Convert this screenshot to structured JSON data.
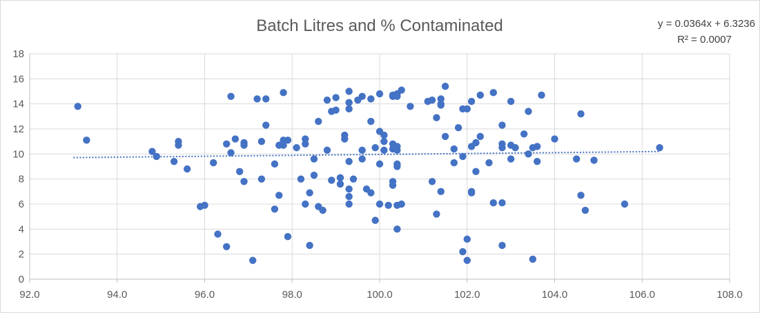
{
  "chart_data": {
    "type": "scatter",
    "title": "Batch Litres and % Contaminated",
    "xlabel": "",
    "ylabel": "",
    "xlim": [
      92.0,
      108.0
    ],
    "ylim": [
      0,
      18
    ],
    "x_ticks": [
      92,
      94,
      96,
      98,
      100,
      102,
      104,
      106,
      108
    ],
    "x_tick_labels": [
      "92.0",
      "94.0",
      "96.0",
      "98.0",
      "100.0",
      "102.0",
      "104.0",
      "106.0",
      "108.0"
    ],
    "y_ticks": [
      0,
      2,
      4,
      6,
      8,
      10,
      12,
      14,
      16,
      18
    ],
    "y_tick_labels": [
      "0",
      "2",
      "4",
      "6",
      "8",
      "10",
      "12",
      "14",
      "16",
      "18"
    ],
    "grid": true,
    "legend": "none",
    "marker_color": "#4472c4",
    "trendline": {
      "type": "linear",
      "slope": 0.0364,
      "intercept": 6.3236,
      "x_range": [
        93.0,
        106.4
      ],
      "style": "dotted",
      "color": "#4472c4",
      "equation_text": "y = 0.0364x + 6.3236",
      "r2_text": "R² = 0.0007"
    },
    "points": [
      [
        93.1,
        13.8
      ],
      [
        93.3,
        11.1
      ],
      [
        94.8,
        10.2
      ],
      [
        94.9,
        9.8
      ],
      [
        95.3,
        9.4
      ],
      [
        95.4,
        11.0
      ],
      [
        95.4,
        10.7
      ],
      [
        95.6,
        8.8
      ],
      [
        95.9,
        5.8
      ],
      [
        96.0,
        5.9
      ],
      [
        96.2,
        9.3
      ],
      [
        96.3,
        3.6
      ],
      [
        96.5,
        10.8
      ],
      [
        96.5,
        2.6
      ],
      [
        96.6,
        14.6
      ],
      [
        96.6,
        10.1
      ],
      [
        96.7,
        11.2
      ],
      [
        96.8,
        8.6
      ],
      [
        96.9,
        10.9
      ],
      [
        96.9,
        10.7
      ],
      [
        96.9,
        7.8
      ],
      [
        97.1,
        1.5
      ],
      [
        97.2,
        14.4
      ],
      [
        97.3,
        11.0
      ],
      [
        97.3,
        8.0
      ],
      [
        97.4,
        14.4
      ],
      [
        97.4,
        12.3
      ],
      [
        97.6,
        9.2
      ],
      [
        97.6,
        5.6
      ],
      [
        97.7,
        10.7
      ],
      [
        97.7,
        6.7
      ],
      [
        97.8,
        10.7
      ],
      [
        97.8,
        11.1
      ],
      [
        97.8,
        14.9
      ],
      [
        97.9,
        11.1
      ],
      [
        97.9,
        3.4
      ],
      [
        98.1,
        10.5
      ],
      [
        98.2,
        8.0
      ],
      [
        98.3,
        11.2
      ],
      [
        98.3,
        10.8
      ],
      [
        98.3,
        6.0
      ],
      [
        98.4,
        2.7
      ],
      [
        98.4,
        6.9
      ],
      [
        98.5,
        9.6
      ],
      [
        98.5,
        8.3
      ],
      [
        98.6,
        12.6
      ],
      [
        98.6,
        5.8
      ],
      [
        98.7,
        5.5
      ],
      [
        98.8,
        10.3
      ],
      [
        98.8,
        14.3
      ],
      [
        98.9,
        13.4
      ],
      [
        98.9,
        7.9
      ],
      [
        99.0,
        13.5
      ],
      [
        99.0,
        14.5
      ],
      [
        99.1,
        7.6
      ],
      [
        99.1,
        8.1
      ],
      [
        99.2,
        11.5
      ],
      [
        99.2,
        11.2
      ],
      [
        99.3,
        15.0
      ],
      [
        99.3,
        14.1
      ],
      [
        99.3,
        7.2
      ],
      [
        99.3,
        6.6
      ],
      [
        99.3,
        9.4
      ],
      [
        99.3,
        13.6
      ],
      [
        99.3,
        6.0
      ],
      [
        99.4,
        8.0
      ],
      [
        99.5,
        14.3
      ],
      [
        99.6,
        14.6
      ],
      [
        99.6,
        9.6
      ],
      [
        99.6,
        10.3
      ],
      [
        99.7,
        7.2
      ],
      [
        99.8,
        14.4
      ],
      [
        99.8,
        12.6
      ],
      [
        99.8,
        6.9
      ],
      [
        99.9,
        10.5
      ],
      [
        99.9,
        4.7
      ],
      [
        100.0,
        11.8
      ],
      [
        100.0,
        9.2
      ],
      [
        100.0,
        14.8
      ],
      [
        100.0,
        6.0
      ],
      [
        100.1,
        11.5
      ],
      [
        100.1,
        11.0
      ],
      [
        100.1,
        10.3
      ],
      [
        100.2,
        5.9
      ],
      [
        100.3,
        14.6
      ],
      [
        100.3,
        10.8
      ],
      [
        100.3,
        10.4
      ],
      [
        100.3,
        7.8
      ],
      [
        100.3,
        7.5
      ],
      [
        100.3,
        14.7
      ],
      [
        100.4,
        14.8
      ],
      [
        100.4,
        10.3
      ],
      [
        100.4,
        10.6
      ],
      [
        100.4,
        9.0
      ],
      [
        100.4,
        5.9
      ],
      [
        100.4,
        4.0
      ],
      [
        100.4,
        9.2
      ],
      [
        100.4,
        14.6
      ],
      [
        100.5,
        15.1
      ],
      [
        100.5,
        6.0
      ],
      [
        100.7,
        13.8
      ],
      [
        101.1,
        14.2
      ],
      [
        101.2,
        14.3
      ],
      [
        101.2,
        7.8
      ],
      [
        101.3,
        5.2
      ],
      [
        101.3,
        12.9
      ],
      [
        101.4,
        14.0
      ],
      [
        101.4,
        13.9
      ],
      [
        101.4,
        7.0
      ],
      [
        101.4,
        14.4
      ],
      [
        101.5,
        15.4
      ],
      [
        101.5,
        11.4
      ],
      [
        101.7,
        10.4
      ],
      [
        101.7,
        9.3
      ],
      [
        101.8,
        12.1
      ],
      [
        101.9,
        9.8
      ],
      [
        101.9,
        2.2
      ],
      [
        101.9,
        13.6
      ],
      [
        102.0,
        13.6
      ],
      [
        102.0,
        3.2
      ],
      [
        102.0,
        1.5
      ],
      [
        102.1,
        14.2
      ],
      [
        102.1,
        10.6
      ],
      [
        102.1,
        6.9
      ],
      [
        102.1,
        7.0
      ],
      [
        102.2,
        10.9
      ],
      [
        102.2,
        8.6
      ],
      [
        102.3,
        14.7
      ],
      [
        102.3,
        11.4
      ],
      [
        102.5,
        9.3
      ],
      [
        102.6,
        14.9
      ],
      [
        102.6,
        6.1
      ],
      [
        102.8,
        10.8
      ],
      [
        102.8,
        10.5
      ],
      [
        102.8,
        6.1
      ],
      [
        102.8,
        12.3
      ],
      [
        102.8,
        2.7
      ],
      [
        103.0,
        10.7
      ],
      [
        103.0,
        9.6
      ],
      [
        103.0,
        14.2
      ],
      [
        103.1,
        10.5
      ],
      [
        103.3,
        11.6
      ],
      [
        103.4,
        13.4
      ],
      [
        103.4,
        10.0
      ],
      [
        103.5,
        10.5
      ],
      [
        103.5,
        1.6
      ],
      [
        103.6,
        9.4
      ],
      [
        103.6,
        10.6
      ],
      [
        103.7,
        14.7
      ],
      [
        104.0,
        11.2
      ],
      [
        104.5,
        9.6
      ],
      [
        104.6,
        13.2
      ],
      [
        104.6,
        6.7
      ],
      [
        104.7,
        5.5
      ],
      [
        104.9,
        9.5
      ],
      [
        105.6,
        6.0
      ],
      [
        106.4,
        10.5
      ]
    ]
  }
}
